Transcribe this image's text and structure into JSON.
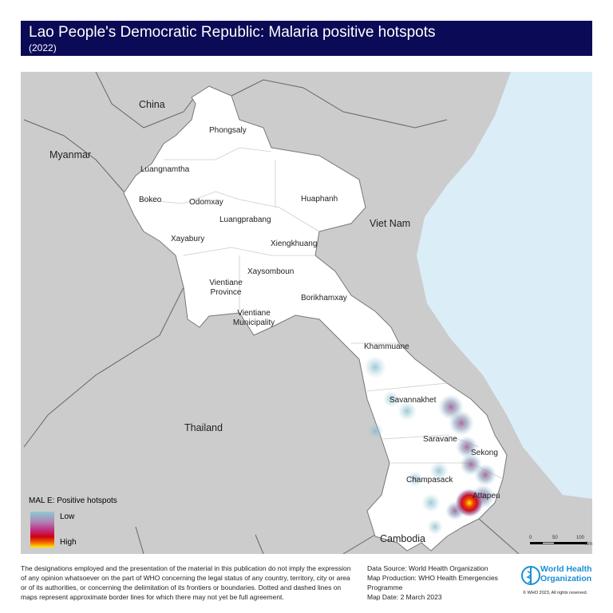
{
  "header": {
    "title": "Lao People's Democratic Republic: Malaria positive hotspots",
    "subtitle": "(2022)"
  },
  "countries": {
    "china": "China",
    "myanmar": "Myanmar",
    "viet_nam": "Viet Nam",
    "thailand": "Thailand",
    "cambodia": "Cambodia"
  },
  "provinces": [
    "Phongsaly",
    "Luangnamtha",
    "Bokeo",
    "Odomxay",
    "Luangprabang",
    "Huaphanh",
    "Xayabury",
    "Xiengkhuang",
    "Xaysomboun",
    "Vientiane Province",
    "Borikhamxay",
    "Vientiane Municipality",
    "Khammuane",
    "Savannakhet",
    "Saravane",
    "Sekong",
    "Champasack",
    "Attapeu"
  ],
  "legend": {
    "title": "MAL E: Positive hotspots",
    "low": "Low",
    "high": "High",
    "colors": [
      "#8ecad6",
      "#b080b0",
      "#c0308a",
      "#d00010",
      "#f06000",
      "#ffee00"
    ]
  },
  "scale": {
    "ticks": [
      "0",
      "50",
      "100"
    ],
    "unit": "Km"
  },
  "footer": {
    "disclaimer": "The designations employed and the presentation of the material in this publication do not imply the expression of any opinion whatsoever on the part of WHO concerning the legal status of any country, territory, city or area or of its authorities, or concerning the delimitation of its frontiers or boundaries. Dotted and dashed lines on maps represent approximate border lines for which there may not yet be full agreement.",
    "data_source": "Data Source: World Health Organization",
    "map_production": "Map Production: WHO Health Emergencies Programme",
    "map_date": "Map Date:  2 March 2023",
    "logo_text": "World Health Organization",
    "copyright": "© WHO 2023, All rights reserved."
  }
}
